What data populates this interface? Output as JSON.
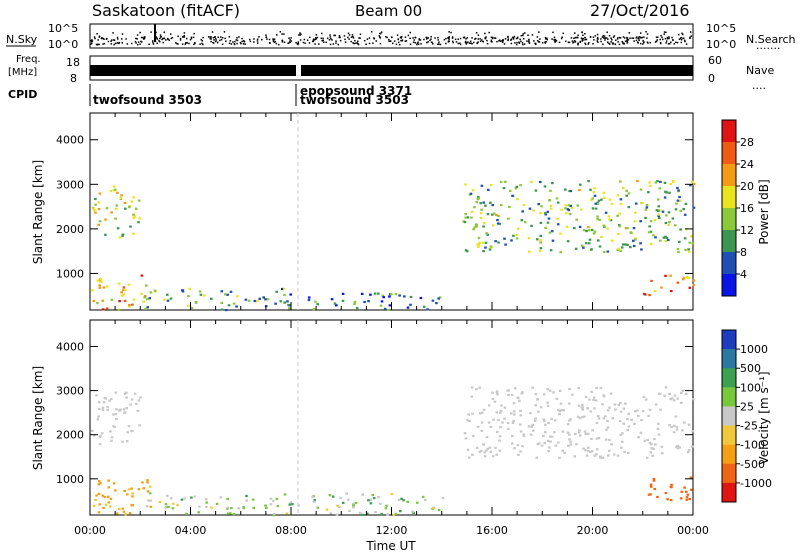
{
  "header": {
    "station": "Saskatoon (fitACF)",
    "beam": "Beam 00",
    "date": "27/Oct/2016"
  },
  "summary": {
    "nsky_label": "N.Sky",
    "nsearch_label": "N.Search",
    "nsearch_dots": "·······",
    "noise_left_top": "10^5",
    "noise_left_bottom": "10^0",
    "noise_right_top": "10^5",
    "noise_right_bottom": "10^0",
    "freq_label_1": "Freq.",
    "freq_label_2": "[MHz]",
    "freq_left_top": "18",
    "freq_left_bottom": "8",
    "nave_label": "Nave",
    "nave_dots": "····",
    "nave_right_top": "60",
    "nave_right_bottom": "0",
    "cpid_label": "CPID",
    "cpid_entries": [
      {
        "name": "twofsound 3503",
        "start_hour": 0
      },
      {
        "name": "epopsound 3371",
        "start_hour": 8.3
      },
      {
        "name": "twofsound 3503",
        "start_hour": 8.3
      }
    ]
  },
  "power_colorbar": {
    "label": "Power [dB]",
    "ticks": [
      "28",
      "24",
      "20",
      "16",
      "12",
      "8",
      "4"
    ],
    "colors": [
      "#e01414",
      "#f05a14",
      "#f59a14",
      "#e9e41e",
      "#8cc83c",
      "#3c9650",
      "#1e50b4",
      "#0a14e6"
    ]
  },
  "velocity_colorbar": {
    "label": "Velocity [m s⁻¹]",
    "ticks": [
      "1000",
      "500",
      "100",
      "25",
      "-25",
      "-100",
      "-500",
      "-1000"
    ],
    "colors": [
      "#1e3cbe",
      "#2d78a0",
      "#3ca050",
      "#78c83c",
      "#c8c8c8",
      "#f0c83c",
      "#f5a014",
      "#f06414",
      "#e11414"
    ]
  },
  "axes": {
    "ylabel": "Slant Range [km]",
    "xlabel": "Time UT",
    "yticks": [
      "1000",
      "2000",
      "3000",
      "4000"
    ],
    "xticks": [
      "00:00",
      "04:00",
      "08:00",
      "12:00",
      "16:00",
      "20:00",
      "00:00"
    ]
  },
  "chart_data": {
    "type": "heatmap",
    "title": "Saskatoon (fitACF) Beam 00 27/Oct/2016",
    "xlabel": "Time UT",
    "ylabel": "Slant Range [km]",
    "xlim_hours": [
      0,
      24
    ],
    "ylim_km": [
      180,
      4600
    ],
    "ground_scatter_color": "gray",
    "panels": [
      {
        "name": "Power",
        "units": "dB",
        "color_range": [
          0,
          30
        ],
        "regions": [
          {
            "t": [
              0.0,
              2.2
            ],
            "r": [
              200,
              1000
            ],
            "value": 20
          },
          {
            "t": [
              0.0,
              2.0
            ],
            "r": [
              1800,
              3000
            ],
            "value": 14
          },
          {
            "t": [
              2.0,
              8.0
            ],
            "r": [
              200,
              700
            ],
            "value": 10
          },
          {
            "t": [
              8.5,
              14.0
            ],
            "r": [
              200,
              600
            ],
            "value": 8
          },
          {
            "t": [
              14.8,
              24.0
            ],
            "r": [
              1500,
              3100
            ],
            "value": 12
          },
          {
            "t": [
              22.0,
              24.0
            ],
            "r": [
              500,
              1000
            ],
            "value": 24
          }
        ]
      },
      {
        "name": "Velocity",
        "units": "m s^-1",
        "color_range": [
          -1000,
          1000
        ],
        "regions": [
          {
            "t": [
              0.0,
              2.5
            ],
            "r": [
              200,
              1000
            ],
            "value": -100
          },
          {
            "t": [
              0.0,
              2.0
            ],
            "r": [
              1800,
              3000
            ],
            "value": 0,
            "ground_scatter": true
          },
          {
            "t": [
              2.0,
              14.0
            ],
            "r": [
              200,
              700
            ],
            "value": 25
          },
          {
            "t": [
              14.8,
              24.0
            ],
            "r": [
              1500,
              3100
            ],
            "value": 0,
            "ground_scatter": true
          },
          {
            "t": [
              22.0,
              24.0
            ],
            "r": [
              500,
              1100
            ],
            "value": -500
          }
        ]
      }
    ]
  }
}
